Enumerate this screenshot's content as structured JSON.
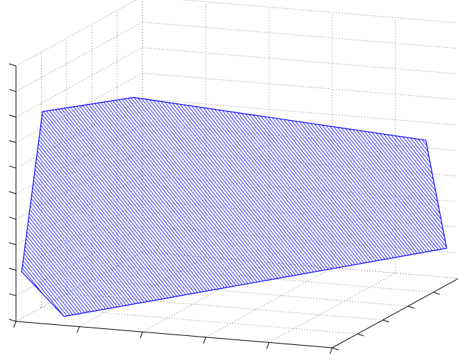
{
  "chart_data": {
    "type": "surface",
    "projection": "3d",
    "title": "",
    "xlabel": "",
    "ylabel": "",
    "zlabel": "",
    "tick_labels_shown": false,
    "grid": true,
    "grid_style": "dotted",
    "polygon_vertices_xyz": [
      [
        0.02,
        0.16,
        0.78
      ],
      [
        0.34,
        0.08,
        0.89
      ],
      [
        0.96,
        0.84,
        0.58
      ],
      [
        0.97,
        0.98,
        0.12
      ],
      [
        0.12,
        0.08,
        0.01
      ],
      [
        0.01,
        0.02,
        0.19
      ]
    ],
    "hatch_line_count": 150,
    "colors": {
      "edge": "#0000ff",
      "hatch": "#1a1aff",
      "grid": "#555555",
      "axis": "#000000"
    }
  }
}
